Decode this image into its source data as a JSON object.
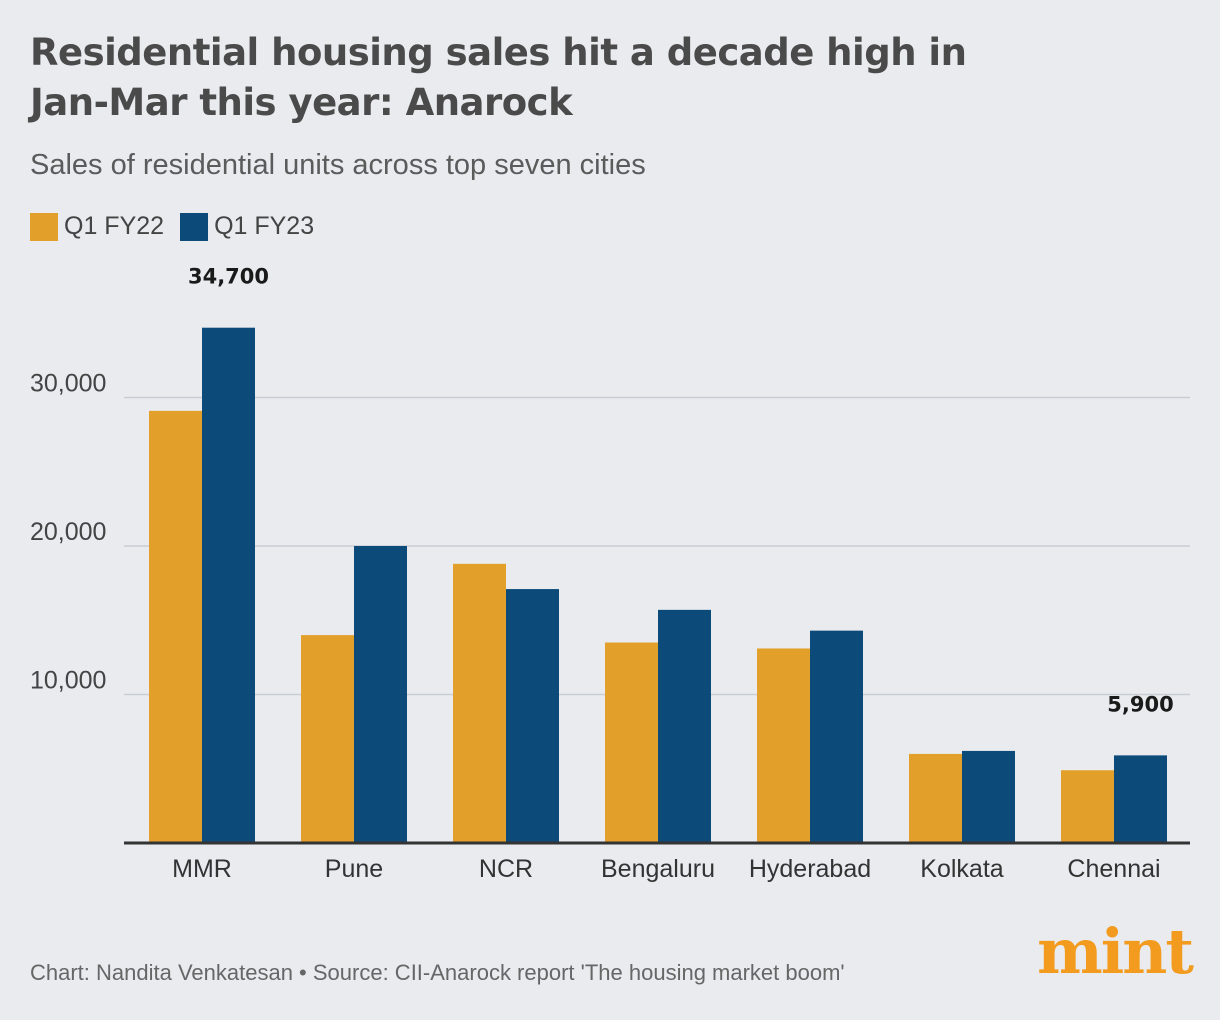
{
  "header": {
    "title_line1": "Residential housing sales hit a decade high in",
    "title_line2": "Jan-Mar this year: Anarock",
    "subtitle": "Sales of residential units across top seven cities"
  },
  "legend": {
    "items": [
      {
        "label": "Q1 FY22",
        "color": "#e2a02a"
      },
      {
        "label": "Q1 FY23",
        "color": "#0c4a7a"
      }
    ]
  },
  "footer": {
    "credit": "Chart: Nandita Venkatesan • Source: CII-Anarock report 'The housing market boom'"
  },
  "logo": {
    "text": "mint",
    "color": "#f39b1f"
  },
  "chart_data": {
    "type": "bar",
    "title": "Residential housing sales hit a decade high in Jan-Mar this year: Anarock",
    "subtitle": "Sales of residential units across top seven cities",
    "categories": [
      "MMR",
      "Pune",
      "NCR",
      "Bengaluru",
      "Hyderabad",
      "Kolkata",
      "Chennai"
    ],
    "series": [
      {
        "name": "Q1 FY22",
        "color": "#e2a02a",
        "values": [
          29100,
          14000,
          18800,
          13500,
          13100,
          6000,
          4900
        ]
      },
      {
        "name": "Q1 FY23",
        "color": "#0c4a7a",
        "values": [
          34700,
          20000,
          17100,
          15700,
          14300,
          6200,
          5900
        ]
      }
    ],
    "yticks": [
      10000,
      20000,
      30000
    ],
    "ytick_labels": [
      "10,000",
      "20,000",
      "30,000"
    ],
    "ylim": [
      0,
      35000
    ],
    "grid": true,
    "legend_position": "top-left",
    "annotations": [
      {
        "category": "MMR",
        "series": "Q1 FY23",
        "text": "34,700"
      },
      {
        "category": "Chennai",
        "series": "Q1 FY23",
        "text": "5,900"
      }
    ]
  }
}
